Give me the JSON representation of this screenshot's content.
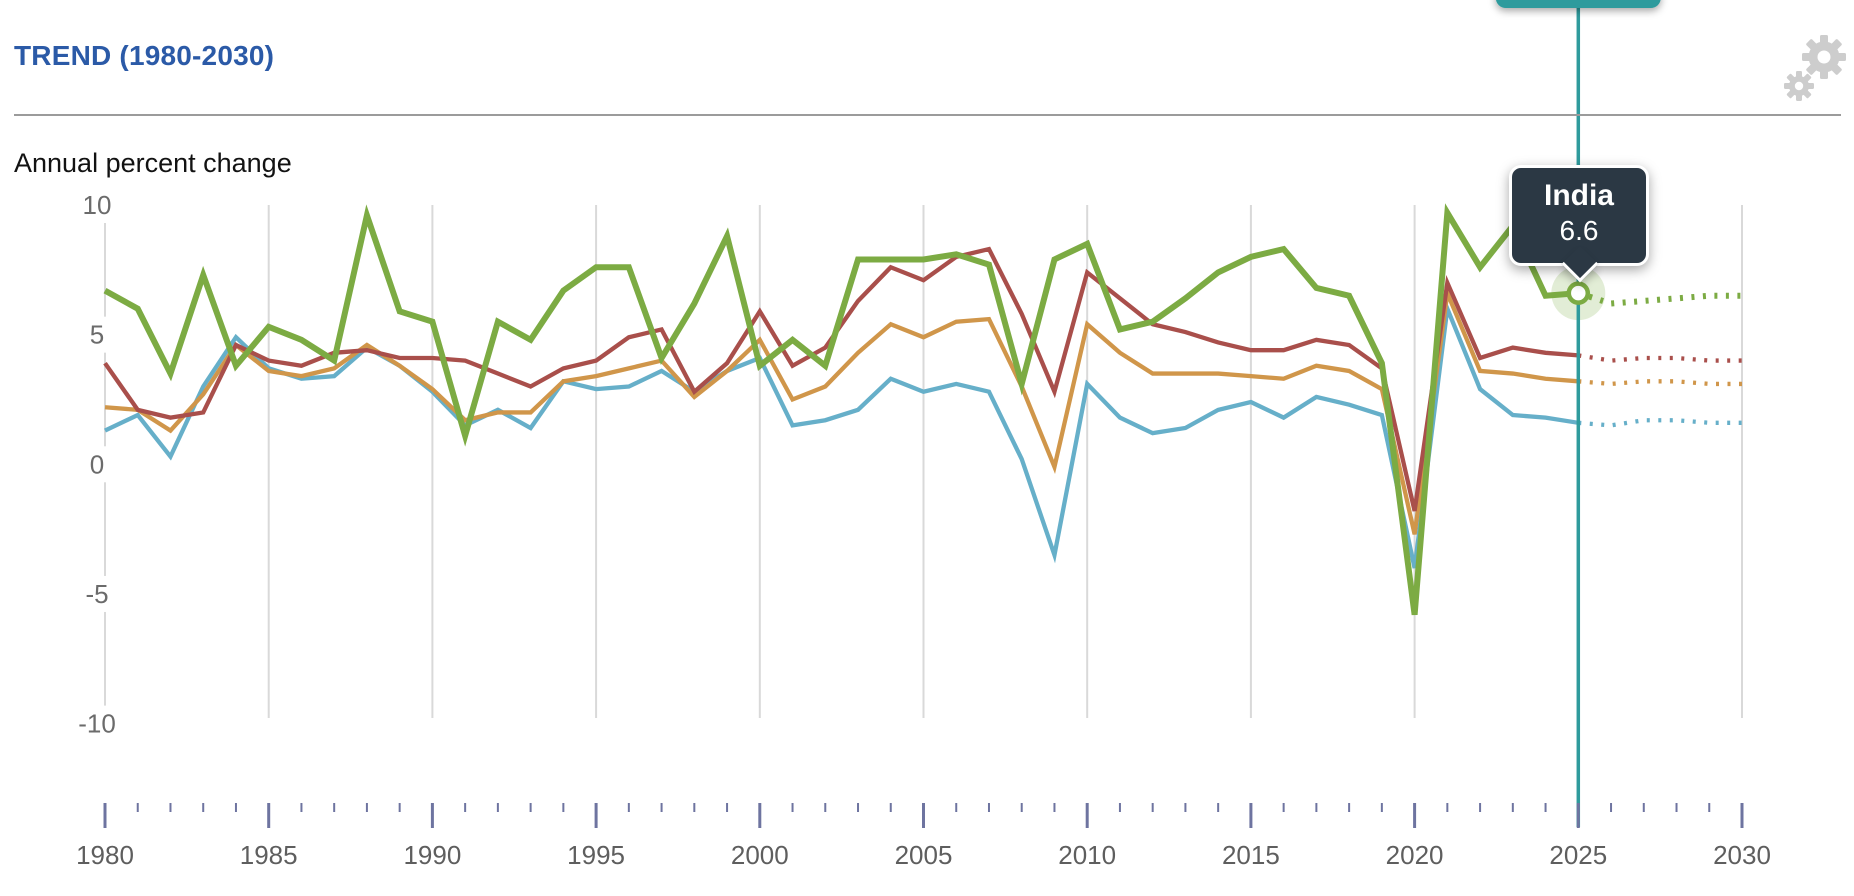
{
  "header": {
    "title": "TREND (1980-2030)"
  },
  "subtitle": "Annual percent change",
  "tooltip": {
    "series": "India",
    "value": "6.6"
  },
  "controls": {
    "gear_icon": "settings-gears-icon",
    "year_slider_selected_year": 2025
  },
  "colors": {
    "title_blue": "#2b5aa7",
    "teal_selector": "#2f9b9d",
    "tooltip_bg": "#2b3844",
    "gridline": "#d9d9d9",
    "tick_slate": "#6e74a0",
    "axis_label_gray": "#5e5e5e",
    "gear_gray": "#cdcdcd",
    "halo_green": "rgba(124,171,67,0.22)"
  },
  "chart_data": {
    "type": "line",
    "title": "TREND (1980-2030)",
    "ylabel": "Annual percent change",
    "grid": "vertical-only",
    "legend": "none",
    "x_axis": {
      "range": [
        1980,
        2030
      ],
      "ticks_labeled": [
        1980,
        1985,
        1990,
        1995,
        2000,
        2005,
        2010,
        2015,
        2020,
        2025,
        2030
      ],
      "minor_tick_step": 1
    },
    "y_axis": {
      "range": [
        -10,
        10
      ],
      "ticks": [
        10,
        5,
        0,
        -5,
        -10
      ]
    },
    "selected_year": 2025,
    "forecast_dotted_from_year": 2025,
    "highlight": {
      "series": "India",
      "year": 2025,
      "value": 6.6
    },
    "years": [
      1980,
      1981,
      1982,
      1983,
      1984,
      1985,
      1986,
      1987,
      1988,
      1989,
      1990,
      1991,
      1992,
      1993,
      1994,
      1995,
      1996,
      1997,
      1998,
      1999,
      2000,
      2001,
      2002,
      2003,
      2004,
      2005,
      2006,
      2007,
      2008,
      2009,
      2010,
      2011,
      2012,
      2013,
      2014,
      2015,
      2016,
      2017,
      2018,
      2019,
      2020,
      2021,
      2022,
      2023,
      2024,
      2025,
      2026,
      2027,
      2028,
      2029,
      2030
    ],
    "series": [
      {
        "id": "india",
        "label": "India",
        "color": "#7cab43",
        "width": 6,
        "values": [
          6.7,
          6.0,
          3.5,
          7.3,
          3.8,
          5.3,
          4.8,
          4.0,
          9.6,
          5.9,
          5.5,
          1.1,
          5.5,
          4.8,
          6.7,
          7.6,
          7.6,
          4.1,
          6.2,
          8.8,
          3.8,
          4.8,
          3.8,
          7.9,
          7.9,
          7.9,
          8.1,
          7.7,
          3.1,
          7.9,
          8.5,
          5.2,
          5.5,
          6.4,
          7.4,
          8.0,
          8.3,
          6.8,
          6.5,
          3.9,
          -5.8,
          9.7,
          7.6,
          9.2,
          6.5,
          6.6,
          6.2,
          6.3,
          6.4,
          6.5,
          6.5
        ]
      },
      {
        "id": "red",
        "label": "",
        "color": "#a94f4b",
        "width": 4.3,
        "values": [
          3.9,
          2.1,
          1.8,
          2.0,
          4.6,
          4.0,
          3.8,
          4.3,
          4.4,
          4.1,
          4.1,
          4.0,
          3.5,
          3.0,
          3.7,
          4.0,
          4.9,
          5.2,
          2.8,
          3.9,
          5.9,
          3.8,
          4.5,
          6.3,
          7.6,
          7.1,
          8.0,
          8.3,
          5.8,
          2.8,
          7.4,
          6.4,
          5.4,
          5.1,
          4.7,
          4.4,
          4.4,
          4.8,
          4.6,
          3.7,
          -1.8,
          7.0,
          4.1,
          4.5,
          4.3,
          4.2,
          4.0,
          4.1,
          4.1,
          4.0,
          4.0
        ]
      },
      {
        "id": "orange",
        "label": "",
        "color": "#d0964a",
        "width": 4.3,
        "values": [
          2.2,
          2.1,
          1.3,
          2.7,
          4.6,
          3.6,
          3.4,
          3.7,
          4.6,
          3.8,
          2.9,
          1.7,
          2.0,
          2.0,
          3.2,
          3.4,
          3.7,
          4.0,
          2.6,
          3.6,
          4.8,
          2.5,
          3.0,
          4.3,
          5.4,
          4.9,
          5.5,
          5.6,
          3.0,
          -0.1,
          5.4,
          4.3,
          3.5,
          3.5,
          3.5,
          3.4,
          3.3,
          3.8,
          3.6,
          2.9,
          -2.7,
          6.6,
          3.6,
          3.5,
          3.3,
          3.2,
          3.1,
          3.2,
          3.2,
          3.1,
          3.1
        ]
      },
      {
        "id": "blue",
        "label": "",
        "color": "#66afc9",
        "width": 4.3,
        "values": [
          1.3,
          1.9,
          0.3,
          3.0,
          4.9,
          3.7,
          3.3,
          3.4,
          4.5,
          3.8,
          2.8,
          1.5,
          2.1,
          1.4,
          3.2,
          2.9,
          3.0,
          3.6,
          2.8,
          3.6,
          4.1,
          1.5,
          1.7,
          2.1,
          3.3,
          2.8,
          3.1,
          2.8,
          0.2,
          -3.5,
          3.1,
          1.8,
          1.2,
          1.4,
          2.1,
          2.4,
          1.8,
          2.6,
          2.3,
          1.9,
          -4.0,
          6.0,
          2.9,
          1.9,
          1.8,
          1.6,
          1.5,
          1.7,
          1.7,
          1.6,
          1.6
        ]
      }
    ]
  }
}
